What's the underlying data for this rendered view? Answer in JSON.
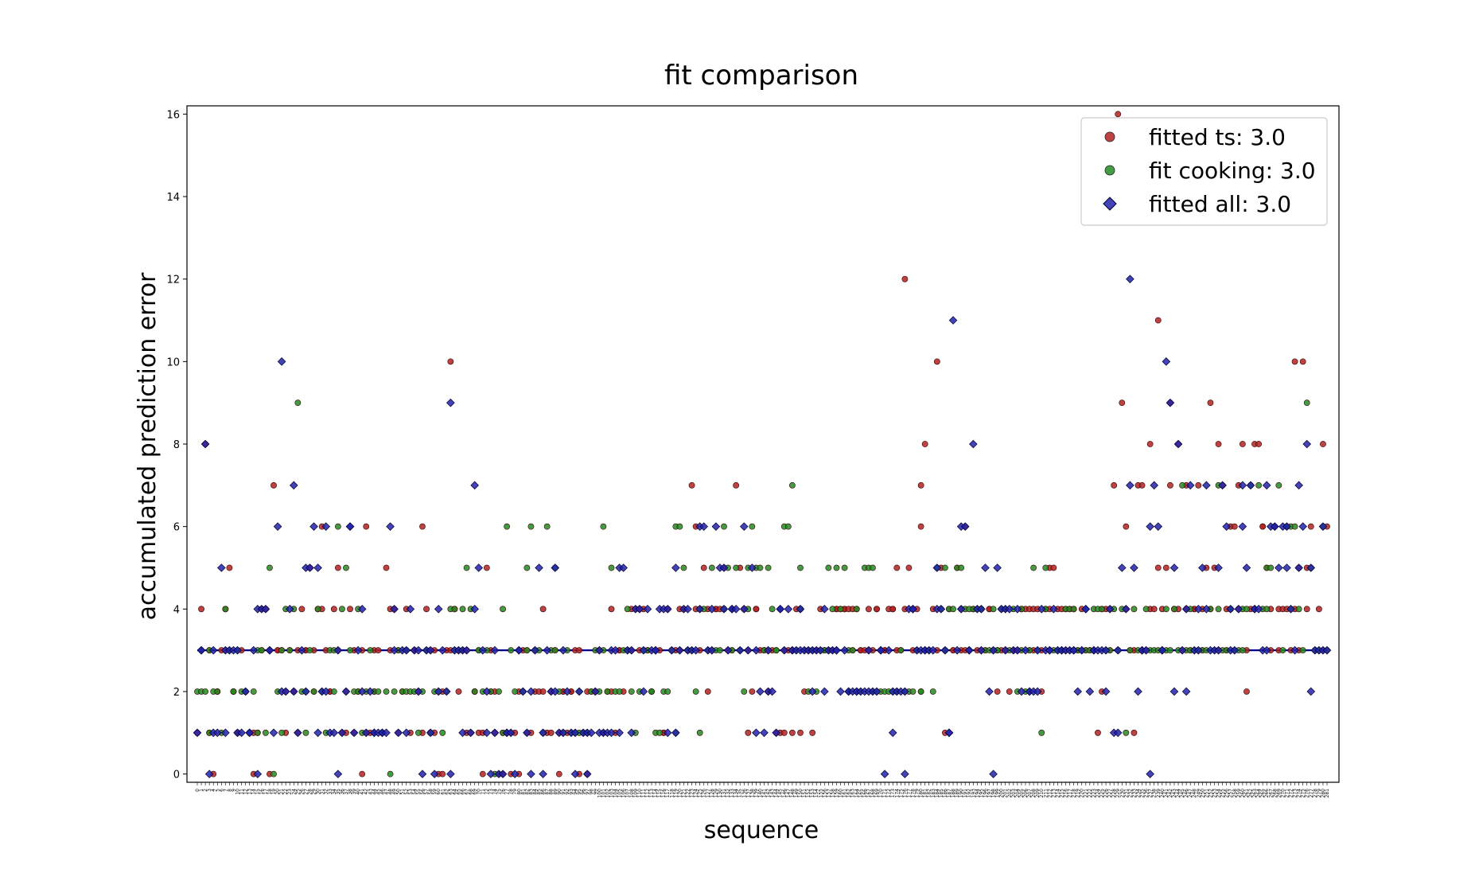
{
  "chart_data": {
    "type": "scatter",
    "title": "fit comparison",
    "xlabel": "sequence",
    "ylabel": "accumulated prediction error",
    "ylim": [
      -0.2,
      16.2
    ],
    "yticks": [
      0,
      2,
      4,
      6,
      8,
      10,
      12,
      14,
      16
    ],
    "n_sequences": 282,
    "legend_position": "upper-right",
    "reference_line": {
      "y": 3.0,
      "color": "#00008b"
    },
    "series": [
      {
        "name": "fitted ts: 3.0",
        "marker": "circle",
        "color": "#b22222",
        "values": [
          1,
          4,
          3,
          8,
          3,
          1,
          0,
          2,
          2,
          3,
          3,
          4,
          5,
          3,
          2,
          1,
          1,
          3,
          2,
          2,
          1,
          1,
          0,
          1,
          4,
          3,
          4,
          0,
          3,
          7,
          3,
          3,
          3,
          1,
          2,
          3,
          2,
          2,
          3,
          1,
          4,
          3,
          3,
          5,
          3,
          2,
          4,
          4,
          6,
          3,
          2,
          2,
          4,
          5,
          3,
          1,
          2,
          1,
          4,
          3,
          1,
          2,
          3,
          0,
          1,
          6,
          1,
          3,
          2,
          3,
          1,
          1,
          5,
          4,
          3,
          4,
          1,
          3,
          2,
          4,
          3,
          1,
          3,
          3,
          2,
          1,
          6,
          4,
          1,
          3,
          3,
          1,
          0,
          2,
          0,
          3,
          3,
          10,
          4,
          2,
          3,
          3,
          1,
          3,
          1,
          2,
          2,
          1,
          0,
          1,
          5,
          3,
          2,
          1,
          2,
          0,
          1,
          0,
          1,
          0,
          1,
          1,
          0,
          2,
          3,
          3,
          1,
          1,
          3,
          2,
          2,
          2,
          4,
          1,
          1,
          2,
          3,
          0,
          1,
          2,
          2,
          1,
          2,
          2,
          3,
          3,
          0,
          1,
          2,
          0,
          2,
          2,
          2,
          3,
          1,
          1,
          2,
          2,
          4,
          1,
          3,
          3,
          2,
          3,
          3,
          4,
          3,
          4,
          3,
          4,
          4,
          3,
          3,
          2,
          3,
          3,
          3,
          1,
          1,
          4,
          3,
          3,
          3,
          3,
          4,
          4,
          3,
          3,
          7,
          6,
          4,
          3,
          4,
          5,
          2,
          4,
          3,
          4,
          4,
          4,
          4,
          5,
          3,
          4,
          3,
          7,
          5,
          3,
          4,
          3,
          1,
          2,
          4,
          4,
          3,
          3,
          3,
          2,
          3,
          3,
          3,
          1,
          1,
          1,
          3,
          3,
          1,
          3,
          4,
          4,
          1,
          2,
          3,
          3,
          1,
          3,
          3,
          4,
          3,
          3,
          3,
          3,
          3,
          4,
          4,
          4,
          4,
          4,
          4,
          3,
          4,
          4,
          3,
          3,
          3,
          4,
          3,
          3,
          4,
          4,
          3,
          3,
          3,
          4,
          4,
          4,
          3,
          5,
          3,
          4,
          12,
          5,
          4,
          3,
          4,
          7,
          6,
          8,
          3,
          3,
          4,
          10,
          3,
          5,
          3,
          1,
          4,
          3,
          3,
          5,
          4,
          3,
          6,
          3,
          3,
          4,
          4,
          3,
          4,
          3,
          3,
          4,
          4,
          3,
          2,
          3,
          3,
          3,
          3,
          2,
          3,
          3,
          3,
          4,
          4,
          4,
          3,
          4,
          4,
          3,
          4,
          3,
          2,
          4,
          4,
          5,
          5,
          3,
          4,
          4,
          3,
          4,
          4,
          4,
          3,
          3,
          4,
          3,
          3,
          3,
          3,
          3,
          3,
          1,
          2,
          4,
          4,
          4,
          3,
          7,
          3,
          16,
          9,
          6,
          4,
          3,
          3,
          1,
          7,
          7,
          3,
          3,
          4,
          8,
          4,
          5,
          11,
          3,
          4,
          5,
          7,
          9,
          4,
          8,
          4,
          3,
          7,
          4,
          3,
          4,
          4,
          7,
          3,
          4,
          5,
          4,
          9,
          5,
          3,
          8,
          7,
          4,
          3,
          4,
          6,
          6,
          7,
          4,
          8,
          3,
          2,
          4,
          8,
          4,
          8,
          6,
          6,
          5,
          3,
          4,
          6,
          3,
          4,
          4,
          6,
          4,
          3,
          10,
          4,
          5,
          3,
          10,
          4,
          5,
          6,
          3,
          3,
          4,
          3,
          8,
          6
        ],
        "stride": 0.67
      },
      {
        "name": "fit cooking: 3.0",
        "marker": "circle",
        "color": "#228b22",
        "values": [
          2,
          2,
          2,
          3,
          1,
          2,
          2,
          1,
          4,
          3,
          2,
          2,
          3,
          2,
          2,
          1,
          2,
          3,
          1,
          3,
          1,
          5,
          0,
          2,
          3,
          1,
          4,
          3,
          4,
          9,
          2,
          1,
          2,
          3,
          2,
          4,
          2,
          1,
          3,
          2,
          3,
          6,
          4,
          5,
          3,
          2,
          4,
          2,
          1,
          2,
          3,
          2,
          2,
          1,
          1,
          2,
          0,
          2,
          3,
          2,
          2,
          3,
          2,
          2,
          1,
          2,
          3,
          1,
          1,
          2,
          2,
          1,
          2,
          4,
          3,
          4,
          3,
          4,
          5,
          4,
          2,
          3,
          3,
          2,
          3,
          2,
          0,
          2,
          4,
          1,
          6,
          3,
          2,
          3,
          2,
          3,
          5,
          6,
          3,
          3,
          1,
          6,
          3,
          3,
          5,
          2,
          1,
          3,
          1,
          1,
          1,
          2,
          1,
          1,
          2,
          3,
          2,
          6,
          3,
          2,
          5,
          2,
          2,
          3,
          3,
          4,
          2,
          1,
          2,
          3,
          3,
          2,
          2,
          1,
          1,
          2,
          2,
          3,
          1,
          6,
          6,
          5,
          3,
          3,
          2,
          1,
          4,
          4,
          3,
          5,
          3,
          3,
          4,
          6,
          5,
          3,
          5,
          3,
          2,
          4,
          5,
          6,
          5,
          5,
          3,
          5,
          4,
          3,
          3,
          4,
          6,
          6,
          7,
          3,
          5,
          4,
          3,
          2,
          3,
          2,
          3,
          3,
          3,
          5,
          4,
          5,
          4,
          5,
          3,
          2,
          3,
          4,
          2,
          5,
          5,
          5,
          2,
          2,
          2,
          2,
          2,
          2,
          2,
          2,
          3,
          2,
          2,
          2,
          3,
          2,
          2,
          3,
          3,
          2,
          5,
          4,
          5,
          3,
          4,
          4,
          5,
          5,
          4,
          3,
          4,
          4,
          4,
          4,
          3,
          3,
          4,
          3,
          3,
          4,
          4,
          3,
          4,
          2,
          3,
          4,
          2,
          3,
          5,
          3,
          1,
          5,
          4,
          3,
          3,
          3,
          3,
          4,
          4,
          3,
          4,
          3,
          3,
          3,
          3,
          4,
          3,
          4,
          4,
          3,
          3,
          4,
          3,
          3,
          4,
          1,
          3,
          4,
          3,
          3,
          3,
          4,
          3,
          3,
          3,
          3,
          3,
          4,
          3,
          4,
          3,
          7,
          3,
          3,
          4,
          3,
          3,
          3,
          3,
          4,
          3,
          7,
          4,
          3,
          3,
          4,
          3,
          3,
          4,
          3,
          4,
          7,
          4,
          7,
          4,
          4,
          5,
          5,
          6,
          7,
          3,
          6,
          4,
          6,
          6,
          4,
          3,
          9,
          5,
          3,
          3,
          3,
          6,
          3
        ],
        "stride": 1.0
      },
      {
        "name": "fitted all: 3.0",
        "marker": "diamond",
        "color": "#2222aa",
        "values": [
          1,
          3,
          3,
          8,
          0,
          1,
          3,
          1,
          5,
          1,
          3,
          3,
          3,
          1,
          3,
          1,
          2,
          1,
          1,
          3,
          4,
          0,
          4,
          4,
          3,
          3,
          1,
          6,
          10,
          2,
          2,
          4,
          7,
          2,
          1,
          3,
          2,
          5,
          5,
          6,
          5,
          1,
          2,
          6,
          2,
          1,
          1,
          3,
          0,
          1,
          2,
          6,
          6,
          1,
          3,
          2,
          4,
          1,
          2,
          1,
          1,
          1,
          1,
          1,
          1,
          6,
          3,
          4,
          1,
          3,
          1,
          3,
          4,
          3,
          2,
          3,
          0,
          3,
          1,
          3,
          0,
          2,
          4,
          3,
          2,
          0,
          9,
          3,
          3,
          3,
          1,
          3,
          1,
          7,
          4,
          5,
          3,
          1,
          2,
          0,
          3,
          1,
          0,
          0,
          1,
          1,
          1,
          0,
          3,
          3,
          2,
          1,
          0,
          2,
          3,
          5,
          1,
          0,
          3,
          2,
          2,
          5,
          1,
          1,
          3,
          2,
          1,
          0,
          1,
          2,
          1,
          1,
          0,
          1,
          2,
          3,
          1,
          1,
          1,
          1,
          3,
          3,
          1,
          5,
          5,
          3,
          1,
          3,
          4,
          4,
          2,
          3,
          4,
          3,
          3,
          3,
          4,
          4,
          4,
          1,
          3,
          5,
          1,
          3,
          4,
          3,
          4,
          3,
          3,
          4,
          6,
          6,
          3,
          4,
          3,
          6,
          5,
          4,
          5,
          3,
          4,
          4,
          4,
          3,
          4,
          6,
          3,
          5,
          3,
          1,
          2,
          1,
          2,
          3,
          2,
          1,
          4,
          4,
          3,
          4,
          3,
          3,
          3,
          3,
          4,
          3,
          3,
          3,
          2,
          3,
          3,
          2,
          4,
          3,
          3,
          3,
          3,
          2,
          3,
          2,
          2,
          2,
          2,
          2,
          2,
          2,
          2,
          3,
          2,
          2,
          3,
          3,
          0,
          3,
          2,
          1,
          2,
          2,
          2,
          0,
          4,
          4,
          4,
          3,
          3,
          3,
          3,
          3,
          3,
          4,
          5,
          4,
          3,
          1,
          1,
          11,
          3,
          4,
          6,
          6,
          3,
          3,
          8,
          4,
          3,
          4,
          5,
          2,
          0,
          3,
          5,
          4,
          4,
          3,
          4,
          3,
          3,
          4,
          2,
          3,
          2,
          2,
          2,
          3,
          2,
          4,
          3,
          3,
          3,
          4,
          3,
          3,
          3,
          3,
          3,
          3,
          3,
          2,
          3,
          4,
          4,
          2,
          3,
          3,
          3,
          3,
          3,
          2,
          4,
          1,
          3,
          1,
          5,
          4,
          12,
          7,
          5,
          2,
          3,
          3,
          3,
          0,
          6,
          7,
          6,
          3,
          3,
          10,
          9,
          2,
          5,
          8,
          3,
          2,
          4,
          7,
          3,
          3,
          4,
          5,
          4,
          7,
          3,
          3,
          5,
          3,
          7,
          6,
          4,
          3,
          3,
          4,
          7,
          6,
          5,
          7,
          4,
          4,
          4,
          3,
          3,
          7,
          6,
          6,
          6,
          5,
          6,
          6,
          5,
          4,
          3,
          7,
          5,
          6,
          8,
          2,
          5,
          3,
          3,
          3,
          6,
          3
        ]
      }
    ]
  },
  "legend": {
    "entries": [
      {
        "label": "fitted ts: 3.0",
        "color": "#b22222",
        "marker": "circle"
      },
      {
        "label": "fit cooking: 3.0",
        "color": "#228b22",
        "marker": "circle"
      },
      {
        "label": "fitted all: 3.0",
        "color": "#2222aa",
        "marker": "diamond"
      }
    ]
  }
}
